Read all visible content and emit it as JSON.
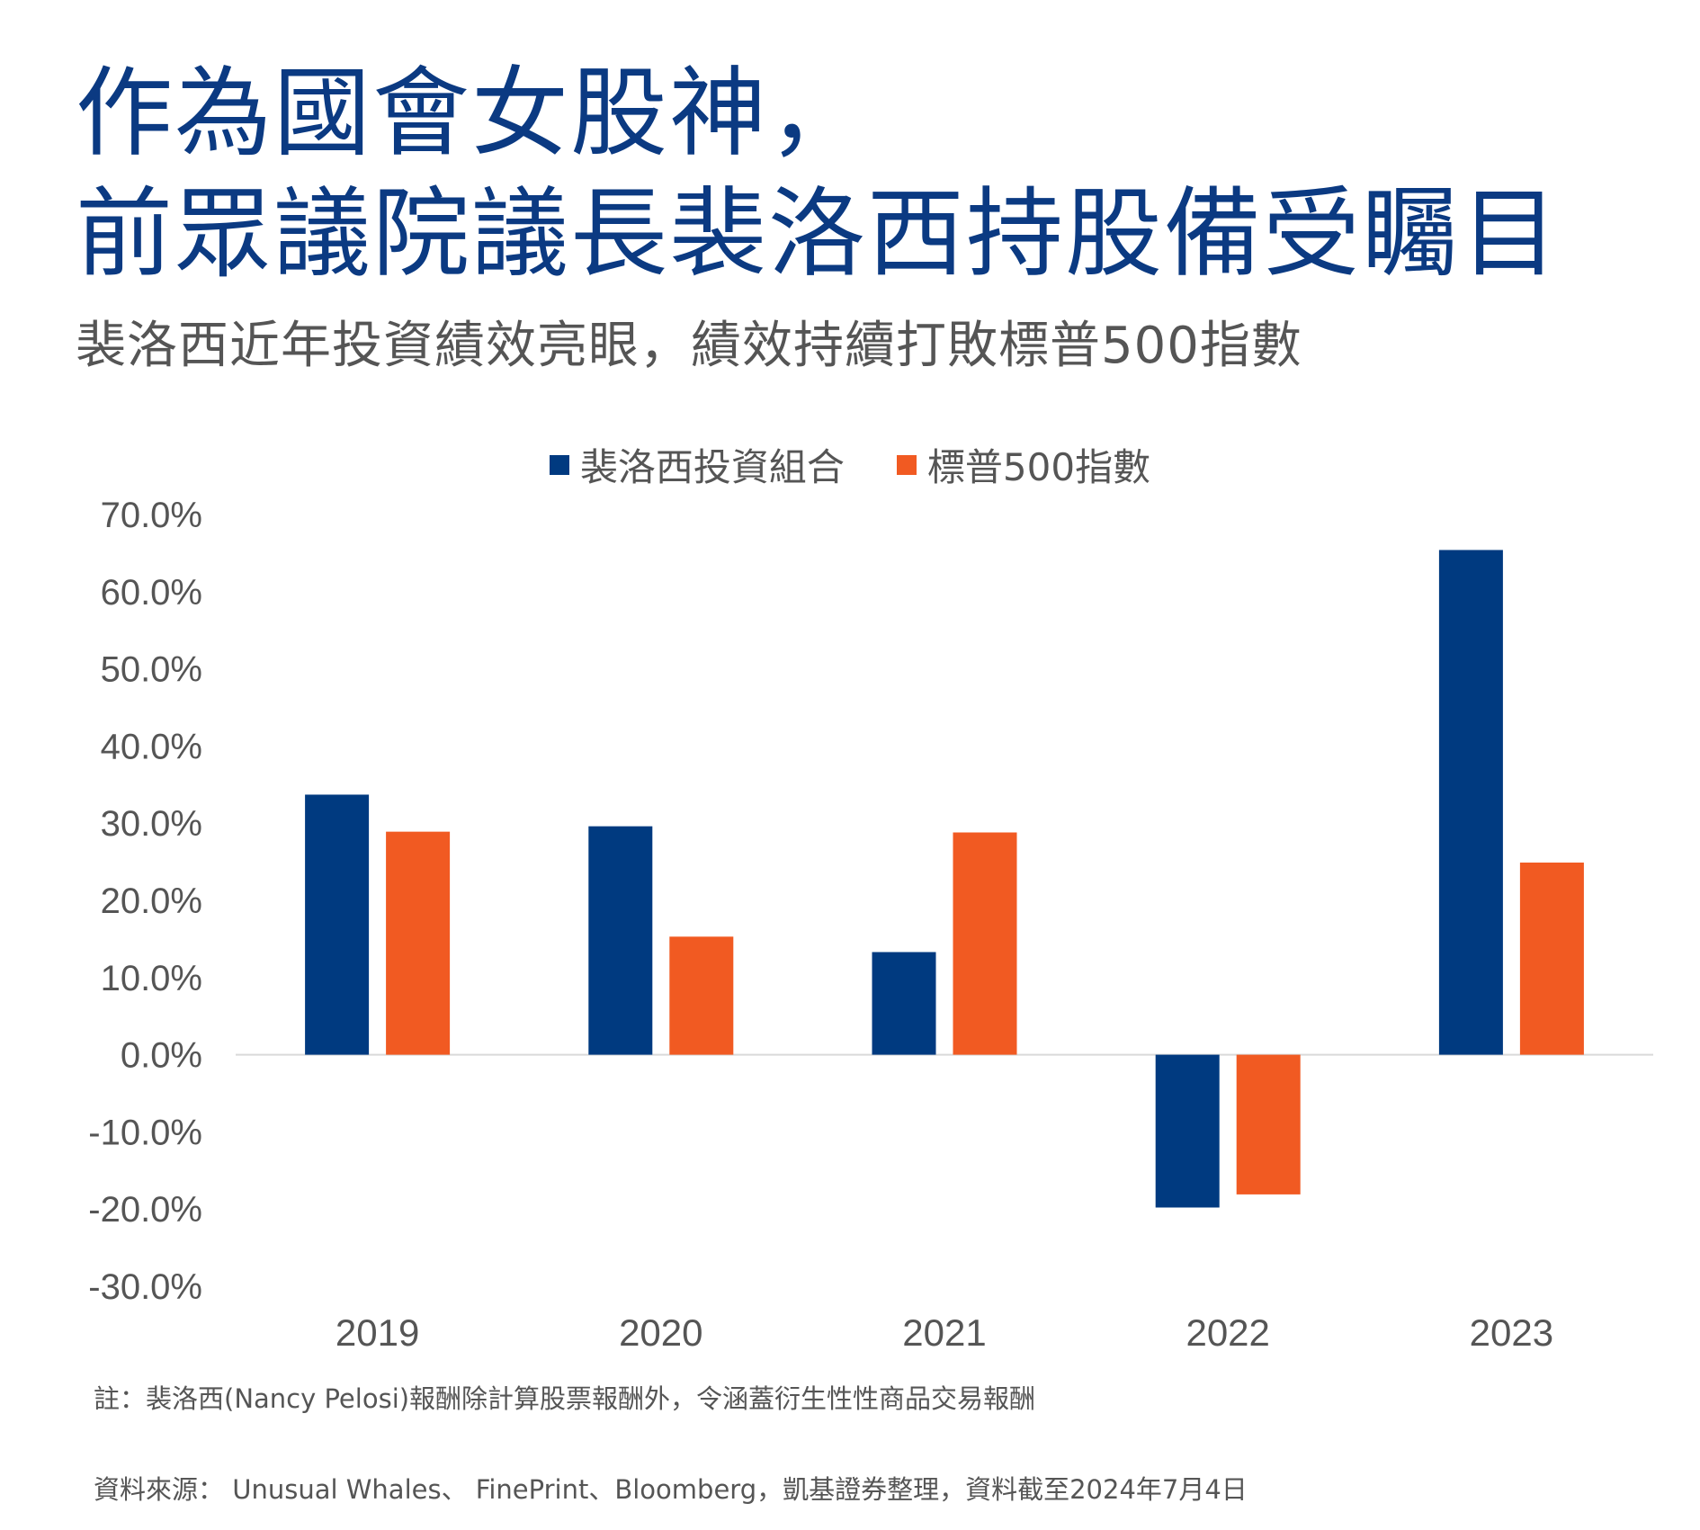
{
  "header": {
    "title_line1": "作為國會女股神，",
    "title_line2": "前眾議院議長裴洛西持股備受矚目",
    "subtitle": "裴洛西近年投資績效亮眼，績效持續打敗標普500指數"
  },
  "colors": {
    "pelosi": "#003a80",
    "sp500": "#f15a22",
    "title": "#0b3a82",
    "text": "#555555"
  },
  "chart_data": {
    "type": "bar",
    "categories": [
      "2019",
      "2020",
      "2021",
      "2022",
      "2023"
    ],
    "series": [
      {
        "name": "裴洛西投資組合",
        "values": [
          33.7,
          29.6,
          13.3,
          -19.8,
          65.4
        ]
      },
      {
        "name": "標普500指數",
        "values": [
          28.9,
          15.3,
          28.8,
          -18.1,
          24.9
        ]
      }
    ],
    "ylim": [
      -30,
      70
    ],
    "yticks": [
      70,
      60,
      50,
      40,
      30,
      20,
      10,
      0,
      -10,
      -20,
      -30
    ],
    "ytick_labels": [
      "70.0%",
      "60.0%",
      "50.0%",
      "40.0%",
      "30.0%",
      "20.0%",
      "10.0%",
      "0.0%",
      "-10.0%",
      "-20.0%",
      "-30.0%"
    ],
    "legend_position": "top-center",
    "grid": false
  },
  "footer": {
    "note": "註：裴洛西(Nancy Pelosi)報酬除計算股票報酬外，令涵蓋衍生性性商品交易報酬",
    "source": "資料來源： Unusual Whales、 FinePrint、Bloomberg，凱基證券整理，資料截至2024年7月4日"
  }
}
